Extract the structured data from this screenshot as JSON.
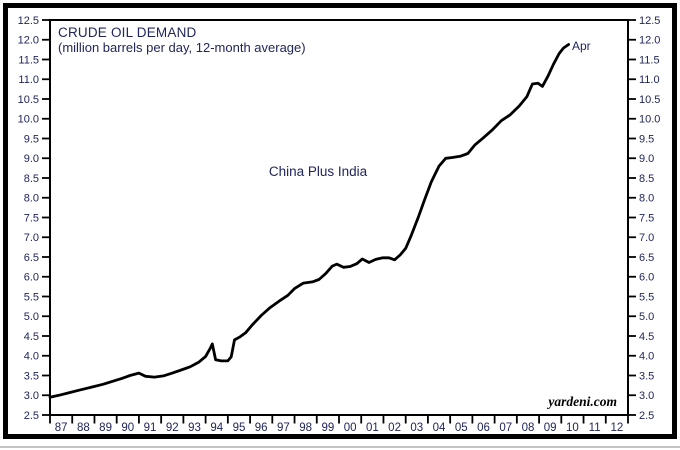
{
  "chart_data": {
    "type": "line",
    "title": "CRUDE OIL DEMAND",
    "subtitle": "(million barrels per day, 12-month average)",
    "watermark": "yardeni.com",
    "grid": false,
    "legend": "none",
    "colors": {
      "line": "#000000",
      "frame": "#000000",
      "text": "#20265c"
    },
    "x_axis": {
      "range": [
        1987,
        2013
      ],
      "tick_labels": [
        "87",
        "88",
        "89",
        "90",
        "91",
        "92",
        "93",
        "94",
        "95",
        "96",
        "97",
        "98",
        "99",
        "00",
        "01",
        "02",
        "03",
        "04",
        "05",
        "06",
        "07",
        "08",
        "09",
        "10",
        "11",
        "12"
      ]
    },
    "y_axis": {
      "range": [
        2.5,
        12.5
      ],
      "step": 0.5,
      "sides": "both",
      "tick_labels": [
        "2.5",
        "3.0",
        "3.5",
        "4.0",
        "4.5",
        "5.0",
        "5.5",
        "6.0",
        "6.5",
        "7.0",
        "7.5",
        "8.0",
        "8.5",
        "9.0",
        "9.5",
        "10.0",
        "10.5",
        "11.0",
        "11.5",
        "12.0",
        "12.5"
      ]
    },
    "endpoint": {
      "x": 2010.33,
      "value": 11.88,
      "label": "Apr"
    },
    "series": [
      {
        "name": "China Plus India",
        "points": [
          [
            1987.0,
            2.95
          ],
          [
            1987.4,
            3.0
          ],
          [
            1987.9,
            3.07
          ],
          [
            1988.4,
            3.14
          ],
          [
            1988.9,
            3.21
          ],
          [
            1989.4,
            3.28
          ],
          [
            1989.8,
            3.35
          ],
          [
            1990.2,
            3.42
          ],
          [
            1990.6,
            3.5
          ],
          [
            1991.0,
            3.56
          ],
          [
            1991.3,
            3.48
          ],
          [
            1991.7,
            3.46
          ],
          [
            1992.1,
            3.49
          ],
          [
            1992.5,
            3.56
          ],
          [
            1992.9,
            3.64
          ],
          [
            1993.3,
            3.72
          ],
          [
            1993.7,
            3.84
          ],
          [
            1994.0,
            3.98
          ],
          [
            1994.2,
            4.18
          ],
          [
            1994.3,
            4.3
          ],
          [
            1994.45,
            3.9
          ],
          [
            1994.7,
            3.87
          ],
          [
            1995.0,
            3.87
          ],
          [
            1995.15,
            3.97
          ],
          [
            1995.3,
            4.4
          ],
          [
            1995.55,
            4.48
          ],
          [
            1995.8,
            4.58
          ],
          [
            1996.1,
            4.78
          ],
          [
            1996.5,
            5.02
          ],
          [
            1996.9,
            5.22
          ],
          [
            1997.3,
            5.38
          ],
          [
            1997.7,
            5.53
          ],
          [
            1998.0,
            5.7
          ],
          [
            1998.4,
            5.84
          ],
          [
            1998.8,
            5.87
          ],
          [
            1999.1,
            5.93
          ],
          [
            1999.4,
            6.08
          ],
          [
            1999.7,
            6.27
          ],
          [
            1999.9,
            6.32
          ],
          [
            2000.2,
            6.24
          ],
          [
            2000.5,
            6.26
          ],
          [
            2000.8,
            6.33
          ],
          [
            2001.05,
            6.45
          ],
          [
            2001.35,
            6.36
          ],
          [
            2001.65,
            6.44
          ],
          [
            2001.95,
            6.48
          ],
          [
            2002.25,
            6.48
          ],
          [
            2002.5,
            6.43
          ],
          [
            2002.75,
            6.55
          ],
          [
            2003.0,
            6.72
          ],
          [
            2003.25,
            7.05
          ],
          [
            2003.55,
            7.48
          ],
          [
            2003.85,
            7.95
          ],
          [
            2004.15,
            8.4
          ],
          [
            2004.5,
            8.8
          ],
          [
            2004.8,
            9.0
          ],
          [
            2005.1,
            9.02
          ],
          [
            2005.45,
            9.05
          ],
          [
            2005.8,
            9.12
          ],
          [
            2006.1,
            9.33
          ],
          [
            2006.5,
            9.52
          ],
          [
            2006.9,
            9.72
          ],
          [
            2007.3,
            9.95
          ],
          [
            2007.7,
            10.1
          ],
          [
            2008.1,
            10.32
          ],
          [
            2008.45,
            10.56
          ],
          [
            2008.7,
            10.88
          ],
          [
            2008.95,
            10.9
          ],
          [
            2009.15,
            10.82
          ],
          [
            2009.4,
            11.08
          ],
          [
            2009.65,
            11.38
          ],
          [
            2009.9,
            11.65
          ],
          [
            2010.1,
            11.79
          ],
          [
            2010.33,
            11.88
          ]
        ]
      }
    ]
  }
}
